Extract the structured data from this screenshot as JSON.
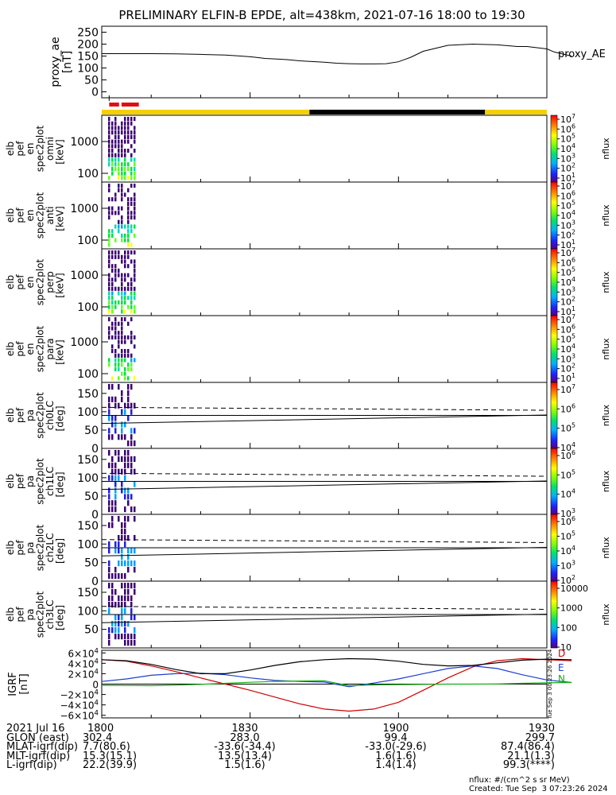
{
  "title": "PRELIMINARY ELFIN-B EPDE, alt=438km, 2021-07-16 18:00 to 19:30",
  "time_axis": {
    "start": "18:00",
    "end": "19:30",
    "ticks": [
      "1800",
      "1830",
      "1900",
      "1930"
    ]
  },
  "chart_data": [
    {
      "type": "line",
      "panel": "proxy_ae",
      "ylabel": "proxy_ae\n[nT]",
      "legend": "proxy_AE",
      "ylim": [
        -25,
        275
      ],
      "yticks": [
        "250",
        "200",
        "150",
        "100",
        "50",
        "0"
      ],
      "x_minutes": [
        0,
        10,
        20,
        30,
        40,
        50,
        55,
        60,
        62,
        66,
        70,
        75,
        80,
        90,
        95,
        100,
        105,
        110,
        115,
        120,
        125,
        130,
        140,
        150,
        160,
        168,
        172,
        180,
        183,
        187,
        190
      ],
      "values": [
        160,
        160,
        160,
        159,
        157,
        154,
        151,
        147,
        145,
        140,
        138,
        135,
        130,
        124,
        120,
        118,
        117,
        117,
        118,
        126,
        145,
        170,
        195,
        200,
        197,
        190,
        190,
        180,
        167,
        157,
        150
      ]
    },
    {
      "type": "bar",
      "panel": "status_bar",
      "segments": [
        {
          "from": 0,
          "to": 84,
          "color": "#f5d000"
        },
        {
          "from": 84,
          "to": 155,
          "color": "#000000"
        },
        {
          "from": 155,
          "to": 180,
          "color": "#f5d000"
        }
      ],
      "red_marks": [
        [
          3,
          7
        ],
        [
          8,
          10
        ],
        [
          9,
          15
        ]
      ]
    },
    {
      "type": "heatmap",
      "panel": "omni",
      "ylabel": [
        "elb",
        "pef",
        "en",
        "spec2plot",
        "omni",
        "[keV]"
      ],
      "yticks": [
        "1000",
        "100"
      ],
      "colorbar_label": "nflux",
      "colorbar_ticks": [
        "10^7",
        "10^6",
        "10^5",
        "10^4",
        "10^3",
        "10^2",
        "10^1"
      ]
    },
    {
      "type": "heatmap",
      "panel": "anti",
      "ylabel": [
        "elb",
        "pef",
        "en",
        "spec2plot",
        "anti",
        "[keV]"
      ],
      "yticks": [
        "1000",
        "100"
      ],
      "colorbar_label": "nflux",
      "colorbar_ticks": [
        "10^7",
        "10^6",
        "10^5",
        "10^4",
        "10^3",
        "10^2",
        "10^1"
      ]
    },
    {
      "type": "heatmap",
      "panel": "perp",
      "ylabel": [
        "elb",
        "pef",
        "en",
        "spec2plot",
        "perp",
        "[keV]"
      ],
      "yticks": [
        "1000",
        "100"
      ],
      "colorbar_label": "nflux",
      "colorbar_ticks": [
        "10^7",
        "10^6",
        "10^5",
        "10^4",
        "10^3",
        "10^2",
        "10^1"
      ]
    },
    {
      "type": "heatmap",
      "panel": "para",
      "ylabel": [
        "elb",
        "pef",
        "en",
        "spec2plot",
        "para",
        "[keV]"
      ],
      "yticks": [
        "1000",
        "100"
      ],
      "colorbar_label": "nflux",
      "colorbar_ticks": [
        "10^7",
        "10^6",
        "10^5",
        "10^4",
        "10^3",
        "10^2",
        "10^1"
      ]
    },
    {
      "type": "heatmap",
      "panel": "ch0LC",
      "ylabel": [
        "elb",
        "pef",
        "pa",
        "spec2plot",
        "ch0LC",
        "[deg]"
      ],
      "yticks": [
        "150",
        "100",
        "50",
        "0"
      ],
      "colorbar_label": "nflux",
      "colorbar_ticks": [
        "10^7",
        "10^6",
        "10^5",
        "10^4"
      ]
    },
    {
      "type": "heatmap",
      "panel": "ch1LC",
      "ylabel": [
        "elb",
        "pef",
        "pa",
        "spec2plot",
        "ch1LC",
        "[deg]"
      ],
      "yticks": [
        "150",
        "100",
        "50",
        "0"
      ],
      "colorbar_label": "nflux",
      "colorbar_ticks": [
        "10^6",
        "10^5",
        "10^4",
        "10^3"
      ]
    },
    {
      "type": "heatmap",
      "panel": "ch2LC",
      "ylabel": [
        "elb",
        "pef",
        "pa",
        "spec2plot",
        "ch2LC",
        "[deg]"
      ],
      "yticks": [
        "150",
        "100",
        "50",
        "0"
      ],
      "colorbar_label": "nflux",
      "colorbar_ticks": [
        "10^6",
        "10^5",
        "10^4",
        "10^3",
        "10^2"
      ]
    },
    {
      "type": "heatmap",
      "panel": "ch3LC",
      "ylabel": [
        "elb",
        "pef",
        "pa",
        "spec2plot",
        "ch3LC",
        "[deg]"
      ],
      "yticks": [
        "150",
        "100",
        "50"
      ],
      "colorbar_label": "nflux",
      "colorbar_ticks": [
        "10000",
        "1000",
        "100",
        "10"
      ]
    },
    {
      "type": "line",
      "panel": "igrf",
      "ylabel": "IGRF\n[nT]",
      "ylim": [
        -65000,
        65000
      ],
      "yticks": [
        "6×10^4",
        "4×10^4",
        "2×10^4",
        "0",
        "−2×10^4",
        "−4×10^4",
        "−6×10^4"
      ],
      "legend": [
        "D",
        "E",
        "N"
      ],
      "x_minutes": [
        0,
        10,
        20,
        30,
        40,
        50,
        60,
        70,
        80,
        90,
        100,
        110,
        120,
        130,
        140,
        150,
        160,
        170,
        180,
        190
      ],
      "series": [
        {
          "name": "D",
          "color": "#d00000",
          "values": [
            47000,
            44000,
            35000,
            24000,
            12000,
            0,
            -12000,
            -25000,
            -38000,
            -48000,
            -52000,
            -48000,
            -35000,
            -12000,
            12000,
            33000,
            45000,
            49000,
            47000,
            45000
          ]
        },
        {
          "name": "E",
          "color": "#1a3fd0",
          "values": [
            5000,
            10000,
            17000,
            20000,
            21000,
            18000,
            12000,
            7000,
            5000,
            4000,
            -5000,
            2000,
            10000,
            20000,
            30000,
            35000,
            30000,
            18000,
            8000,
            3000
          ]
        },
        {
          "name": "N",
          "color": "#10b010",
          "values": [
            -2500,
            -2800,
            -3000,
            -2000,
            -500,
            1500,
            3500,
            5000,
            6000,
            6500,
            -3000,
            -1500,
            -1000,
            -500,
            0,
            0,
            300,
            1500,
            2500,
            3000
          ]
        },
        {
          "name": "",
          "color": "#000000",
          "values": [
            47000,
            45000,
            38000,
            28000,
            20000,
            20000,
            27000,
            36000,
            43000,
            47000,
            49000,
            48000,
            44000,
            38000,
            35000,
            36000,
            41000,
            46000,
            48000,
            47000
          ]
        }
      ]
    }
  ],
  "igrf_timestamp": "Tue Sep  3 00:23:26 2024",
  "footer": {
    "rows": [
      {
        "label": "2021 Jul 16",
        "cols": [
          "1800",
          "1830",
          "1900",
          "1930"
        ]
      },
      {
        "label": "GLON (east)",
        "cols": [
          "302.4",
          "283.0",
          "99.4",
          "299.7"
        ]
      },
      {
        "label": "MLAT-igrf(dip)",
        "cols": [
          "7.7(80.6)",
          "-33.6(-34.4)",
          "-33.0(-29.6)",
          "87.4(86.4)"
        ]
      },
      {
        "label": "MLT-igrf(dip)",
        "cols": [
          "15.3(15.1)",
          "13.5(13.4)",
          "1.6(1.6)",
          "21.1(1.3)"
        ]
      },
      {
        "label": "L-igrf(dip)",
        "cols": [
          "22.2(39.9)",
          "1.5(1.6)",
          "1.4(1.4)",
          "99.3(****)"
        ]
      }
    ],
    "units_note": "nflux: #/(cm^2 s sr MeV)",
    "created": "Created: Tue Sep  3 07:23:26 2024"
  }
}
